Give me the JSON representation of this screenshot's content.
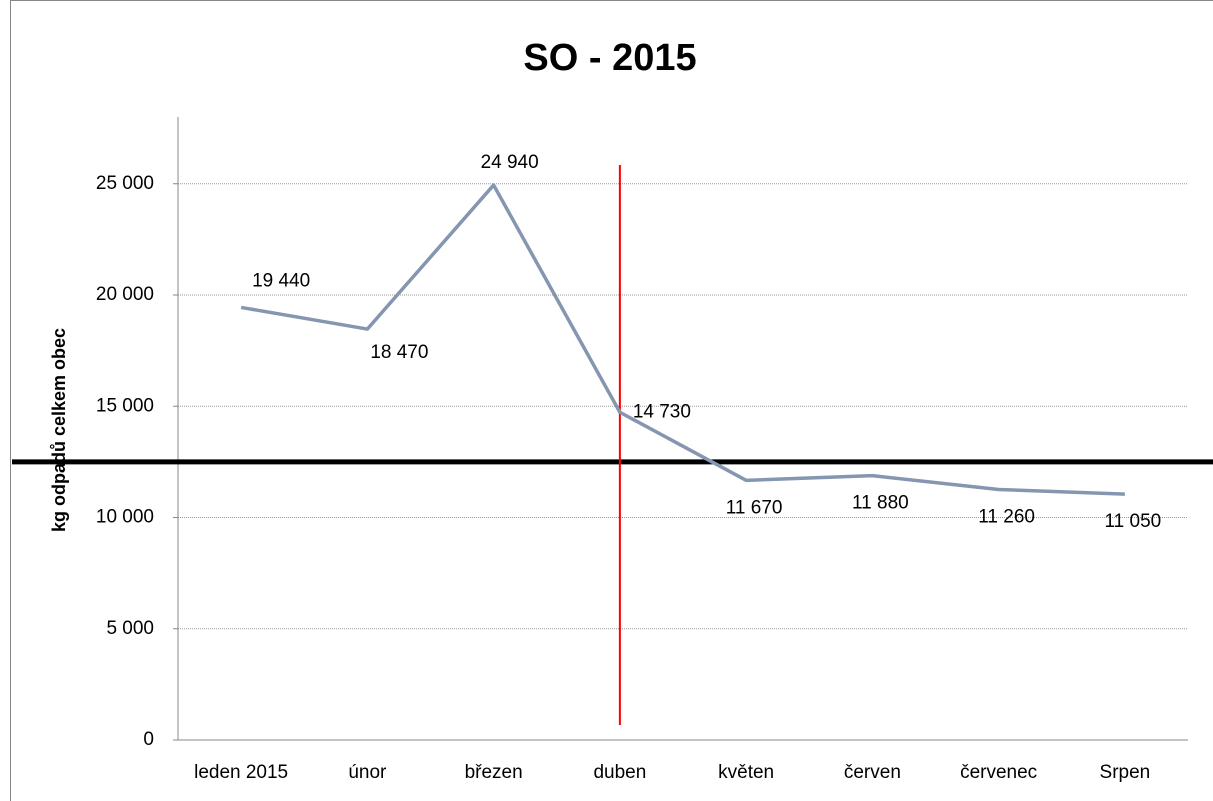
{
  "chart_data": {
    "type": "line",
    "title": "SO - 2015",
    "y_axis_label": "kg odpadů celkem obec",
    "categories": [
      "leden 2015",
      "únor",
      "březen",
      "duben",
      "květen",
      "červen",
      "červenec",
      "Srpen"
    ],
    "series": [
      {
        "name": "SO",
        "color": "#8496b0",
        "values": [
          19440,
          18470,
          24940,
          14730,
          11670,
          11880,
          11260,
          11050
        ],
        "value_labels": [
          "19 440",
          "18 470",
          "24 940",
          "14 730",
          "11 670",
          "11 880",
          "11 260",
          "11 050"
        ]
      }
    ],
    "ylim": [
      0,
      28000
    ],
    "yticks": [
      0,
      {
        "value": 5000,
        "label": "5 000"
      },
      {
        "value": 10000,
        "label": "10 000"
      },
      {
        "value": 15000,
        "label": "15 000"
      },
      {
        "value": 20000,
        "label": "20 000"
      },
      {
        "value": 25000,
        "label": "25 000"
      }
    ],
    "grid": true,
    "reference_lines": {
      "horizontal": {
        "value": 12500,
        "color": "#000000"
      },
      "vertical": {
        "category": "duben",
        "color": "#ff0000"
      }
    }
  }
}
